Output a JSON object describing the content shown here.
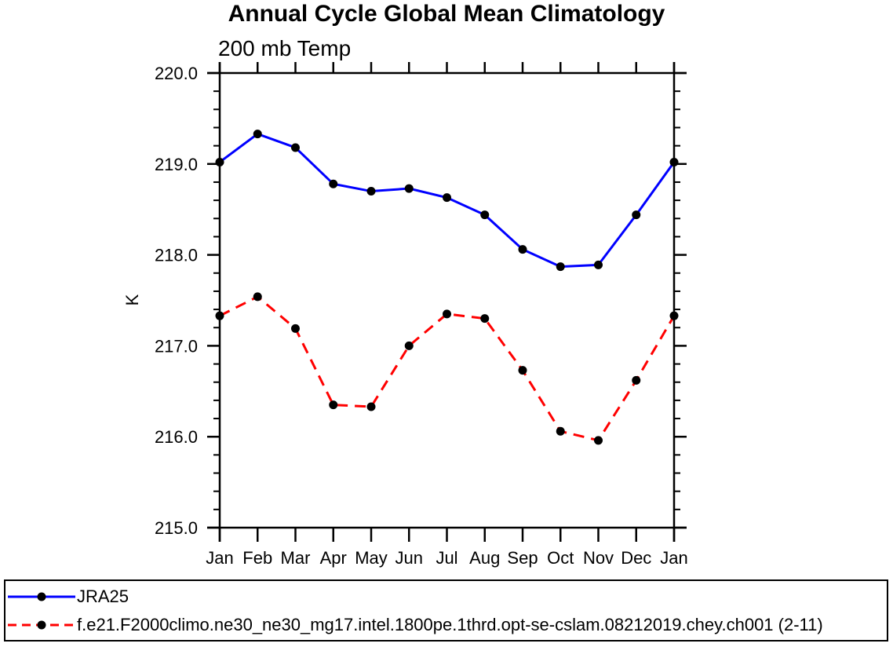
{
  "chart_data": {
    "type": "line",
    "title": "Annual Cycle Global Mean Climatology",
    "subtitle": "200 mb Temp",
    "ylabel": "K",
    "xlabel": "",
    "categories": [
      "Jan",
      "Feb",
      "Mar",
      "Apr",
      "May",
      "Jun",
      "Jul",
      "Aug",
      "Sep",
      "Oct",
      "Nov",
      "Dec",
      "Jan"
    ],
    "ylim": [
      215.0,
      220.0
    ],
    "ytick_step": 1.0,
    "ytick_minor_step": 0.2,
    "ytick_labels": [
      "215.0",
      "216.0",
      "217.0",
      "218.0",
      "219.0",
      "220.0"
    ],
    "grid": false,
    "legend_position": "bottom-box",
    "axis_color": "#000000",
    "marker_color": "#000000",
    "series": [
      {
        "name": "JRA25",
        "color": "#0000ff",
        "style": "solid",
        "marker": "circle",
        "values": [
          219.02,
          219.33,
          219.18,
          218.78,
          218.7,
          218.73,
          218.63,
          218.44,
          218.06,
          217.87,
          217.89,
          218.44,
          219.02
        ]
      },
      {
        "name": "f.e21.F2000climo.ne30_ne30_mg17.intel.1800pe.1thrd.opt-se-cslam.08212019.chey.ch001 (2-11)",
        "color": "#ff0000",
        "style": "dashed",
        "marker": "circle",
        "values": [
          217.33,
          217.54,
          217.19,
          216.35,
          216.33,
          217.0,
          217.35,
          217.3,
          216.73,
          216.06,
          215.96,
          216.62,
          217.33
        ]
      }
    ]
  }
}
